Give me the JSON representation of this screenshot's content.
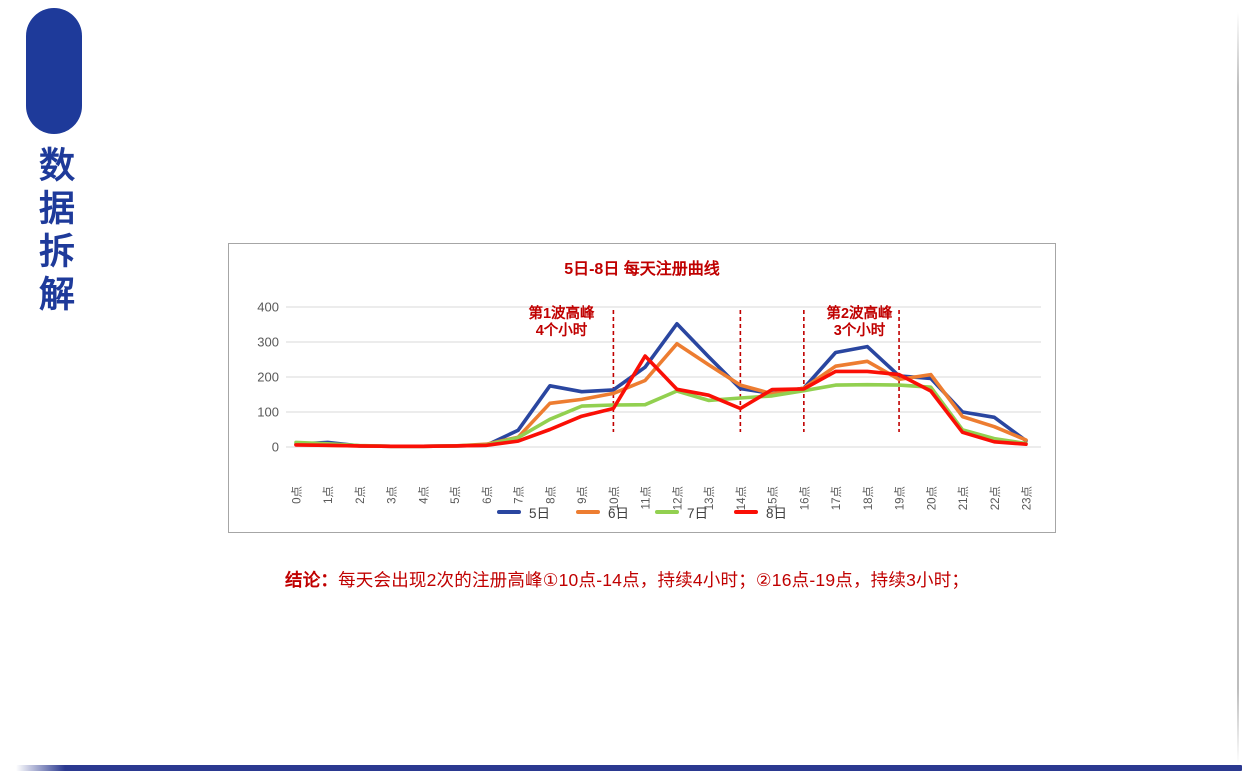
{
  "sidebar": {
    "title_vertical": "数据拆解"
  },
  "colors": {
    "accent_blue": "#1e3a9a",
    "footer_bar_blue": "#2b3990",
    "heading_red": "#c00000",
    "axis_text_gray": "#595959",
    "gridline_gray": "#d9d9d9"
  },
  "chart_data": {
    "type": "line",
    "title": "5日-8日 每天注册曲线",
    "xlabel": "",
    "ylabel": "",
    "ylim": [
      0,
      400
    ],
    "yticks": [
      0,
      100,
      200,
      300,
      400
    ],
    "grid": true,
    "legend_position": "bottom",
    "categories": [
      "0点",
      "1点",
      "2点",
      "3点",
      "4点",
      "5点",
      "6点",
      "7点",
      "8点",
      "9点",
      "10点",
      "11点",
      "12点",
      "13点",
      "14点",
      "15点",
      "16点",
      "17点",
      "18点",
      "19点",
      "20点",
      "21点",
      "22点",
      "23点"
    ],
    "series": [
      {
        "name": "5日",
        "color": "#2a46a0",
        "values": [
          8,
          13,
          3,
          2,
          2,
          3,
          5,
          48,
          175,
          158,
          163,
          228,
          352,
          258,
          167,
          153,
          168,
          270,
          287,
          203,
          196,
          100,
          85,
          18
        ]
      },
      {
        "name": "6日",
        "color": "#ed7d31",
        "values": [
          7,
          5,
          3,
          2,
          2,
          3,
          8,
          28,
          125,
          136,
          153,
          190,
          295,
          235,
          177,
          152,
          168,
          231,
          245,
          193,
          207,
          87,
          58,
          20
        ]
      },
      {
        "name": "7日",
        "color": "#92d050",
        "values": [
          13,
          9,
          4,
          2,
          2,
          3,
          6,
          27,
          79,
          117,
          120,
          121,
          160,
          133,
          140,
          146,
          161,
          177,
          178,
          177,
          171,
          49,
          24,
          10
        ]
      },
      {
        "name": "8日",
        "color": "#fa0f06",
        "values": [
          6,
          5,
          3,
          2,
          2,
          3,
          5,
          17,
          50,
          88,
          110,
          260,
          165,
          148,
          110,
          164,
          166,
          216,
          216,
          207,
          160,
          42,
          15,
          8
        ]
      }
    ],
    "reference_lines": {
      "hours": [
        10,
        14,
        16,
        19
      ],
      "color": "#c00000",
      "style": "dashed"
    },
    "annotations": [
      {
        "lines": [
          "第1波高峰",
          "4个小时"
        ]
      },
      {
        "lines": [
          "第2波高峰",
          "3个小时"
        ]
      }
    ]
  },
  "conclusion": {
    "label": "结论：",
    "text": "每天会出现2次的注册高峰①10点-14点，持续4小时；②16点-19点，持续3小时；"
  }
}
